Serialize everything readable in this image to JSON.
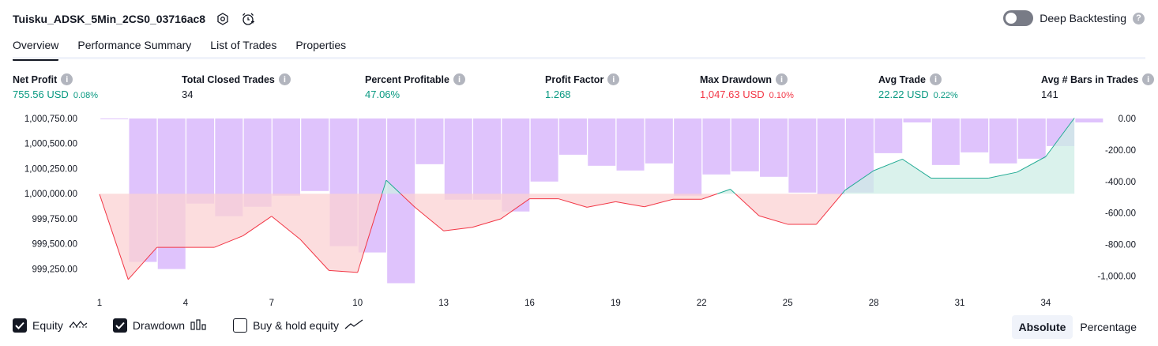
{
  "header": {
    "title": "Tuisku_ADSK_5Min_2CS0_03716ac8",
    "deep_backtesting_label": "Deep Backtesting",
    "help_glyph": "?"
  },
  "tabs": [
    {
      "label": "Overview",
      "active": true
    },
    {
      "label": "Performance Summary",
      "active": false
    },
    {
      "label": "List of Trades",
      "active": false
    },
    {
      "label": "Properties",
      "active": false
    }
  ],
  "metrics": [
    {
      "label": "Net Profit",
      "value": "755.56 USD",
      "pct": "0.08%",
      "color": "green"
    },
    {
      "label": "Total Closed Trades",
      "value": "34",
      "pct": "",
      "color": "dark"
    },
    {
      "label": "Percent Profitable",
      "value": "47.06%",
      "pct": "",
      "color": "green"
    },
    {
      "label": "Profit Factor",
      "value": "1.268",
      "pct": "",
      "color": "green"
    },
    {
      "label": "Max Drawdown",
      "value": "1,047.63 USD",
      "pct": "0.10%",
      "color": "red"
    },
    {
      "label": "Avg Trade",
      "value": "22.22 USD",
      "pct": "0.22%",
      "color": "green"
    },
    {
      "label": "Avg # Bars in Trades",
      "value": "141",
      "pct": "",
      "color": "dark"
    }
  ],
  "chart_data": {
    "type": "line",
    "x_ticks": [
      "1",
      "4",
      "7",
      "10",
      "13",
      "16",
      "19",
      "22",
      "25",
      "28",
      "31",
      "34"
    ],
    "left_axis": {
      "ticks": [
        "1,000,750.00",
        "1,000,500.00",
        "1,000,250.00",
        "1,000,000.00",
        "999,750.00",
        "999,500.00",
        "999,250.00"
      ],
      "ylim": [
        999100,
        1000750
      ]
    },
    "right_axis": {
      "ticks": [
        "0.00",
        "-200.00",
        "-400.00",
        "-600.00",
        "-800.00",
        "-1,000.00"
      ],
      "ylim": [
        -1050,
        0
      ]
    },
    "baseline": 1000000,
    "series": [
      {
        "name": "Equity",
        "x": [
          1,
          2,
          3,
          4,
          5,
          6,
          7,
          8,
          9,
          10,
          11,
          12,
          13,
          14,
          15,
          16,
          17,
          18,
          19,
          20,
          21,
          22,
          23,
          24,
          25,
          26,
          27,
          28,
          29,
          30,
          31,
          32,
          33,
          34,
          35
        ],
        "values": [
          999995,
          999145,
          999465,
          999465,
          999465,
          999580,
          999775,
          999545,
          999235,
          999215,
          1000135,
          999865,
          999630,
          999665,
          999750,
          999950,
          999950,
          999865,
          999920,
          999870,
          999945,
          999945,
          1000045,
          999780,
          999695,
          999695,
          1000035,
          1000230,
          1000345,
          1000155,
          1000155,
          1000155,
          1000215,
          1000370,
          1000755
        ]
      },
      {
        "name": "Drawdown",
        "x": [
          1,
          2,
          3,
          4,
          5,
          6,
          7,
          8,
          9,
          10,
          11,
          12,
          13,
          14,
          15,
          16,
          17,
          18,
          19,
          20,
          21,
          22,
          23,
          24,
          25,
          26,
          27,
          28,
          29,
          30,
          31,
          32,
          33,
          34,
          35
        ],
        "values": [
          -5,
          -910,
          -955,
          -540,
          -620,
          -560,
          -490,
          -460,
          -810,
          -850,
          -1045,
          -290,
          -515,
          -515,
          -590,
          -400,
          -230,
          -300,
          -330,
          -285,
          -490,
          -355,
          -335,
          -370,
          -470,
          -480,
          -470,
          -220,
          -25,
          -295,
          -215,
          -285,
          -255,
          -175,
          -25
        ]
      }
    ],
    "legend": [
      {
        "label": "Equity",
        "checked": true
      },
      {
        "label": "Drawdown",
        "checked": true
      },
      {
        "label": "Buy & hold equity",
        "checked": false
      }
    ],
    "colors": {
      "profit_line": "#22ab94",
      "profit_fill": "#cdeee6",
      "loss_line": "#f23645",
      "loss_fill": "#fbd2d3",
      "drawdown_bar": "#d9b9fb"
    }
  },
  "scale_toggle": {
    "options": [
      "Absolute",
      "Percentage"
    ],
    "active": "Absolute"
  }
}
